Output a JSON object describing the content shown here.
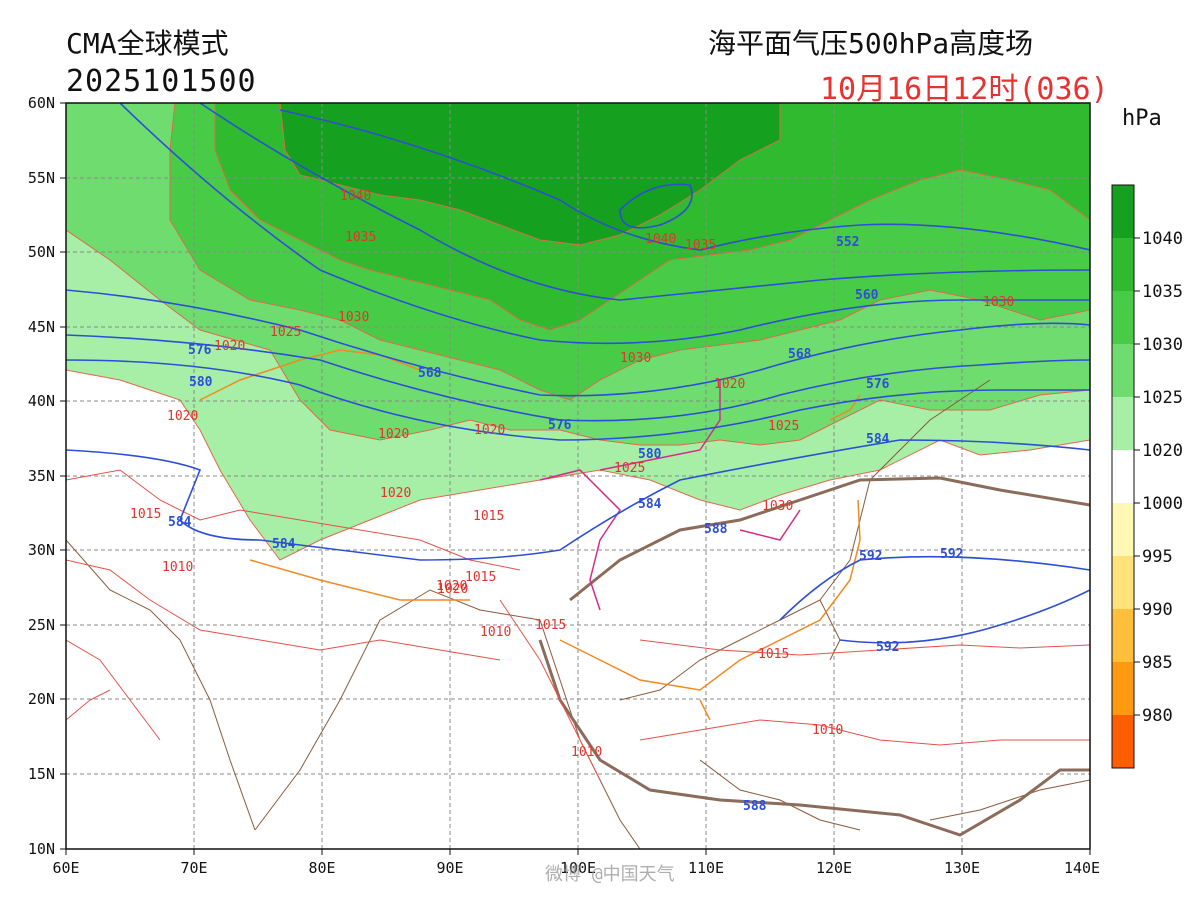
{
  "header": {
    "model": "CMA全球模式",
    "init_time": "2025101500",
    "field_title": "海平面气压500hPa高度场",
    "valid_time": "10月16日12时(036)"
  },
  "legend": {
    "unit": "hPa",
    "levels": [
      "1040",
      "1035",
      "1030",
      "1025",
      "1020",
      "1000",
      "995",
      "990",
      "985",
      "980"
    ],
    "colors": [
      "#15a020",
      "#2fba2f",
      "#48cc48",
      "#6fdc6f",
      "#a7eea7",
      "#ffffff",
      "#fff8b4",
      "#ffe27a",
      "#ffbf3a",
      "#ff9a10",
      "#ff5e00"
    ]
  },
  "axes": {
    "lat_labels": [
      "60N",
      "55N",
      "50N",
      "45N",
      "40N",
      "35N",
      "30N",
      "25N",
      "20N",
      "15N",
      "10N"
    ],
    "lon_labels": [
      "60E",
      "70E",
      "80E",
      "90E",
      "100E",
      "110E",
      "120E",
      "130E",
      "140E"
    ]
  },
  "isobar_labels": [
    "1040",
    "1035",
    "1040",
    "1035",
    "1030",
    "1025",
    "1020",
    "1030",
    "1030",
    "1020",
    "1020",
    "1020",
    "1020",
    "1020",
    "1025",
    "1025",
    "1015",
    "1020",
    "1015",
    "1015",
    "1010",
    "1010",
    "1015",
    "1020",
    "1030",
    "1015",
    "1010",
    "1010"
  ],
  "height_labels": [
    "552",
    "560",
    "568",
    "568",
    "576",
    "576",
    "576",
    "580",
    "580",
    "584",
    "584",
    "584",
    "584",
    "588",
    "588",
    "592",
    "592",
    "592"
  ],
  "watermark": "微博 @中国天气"
}
